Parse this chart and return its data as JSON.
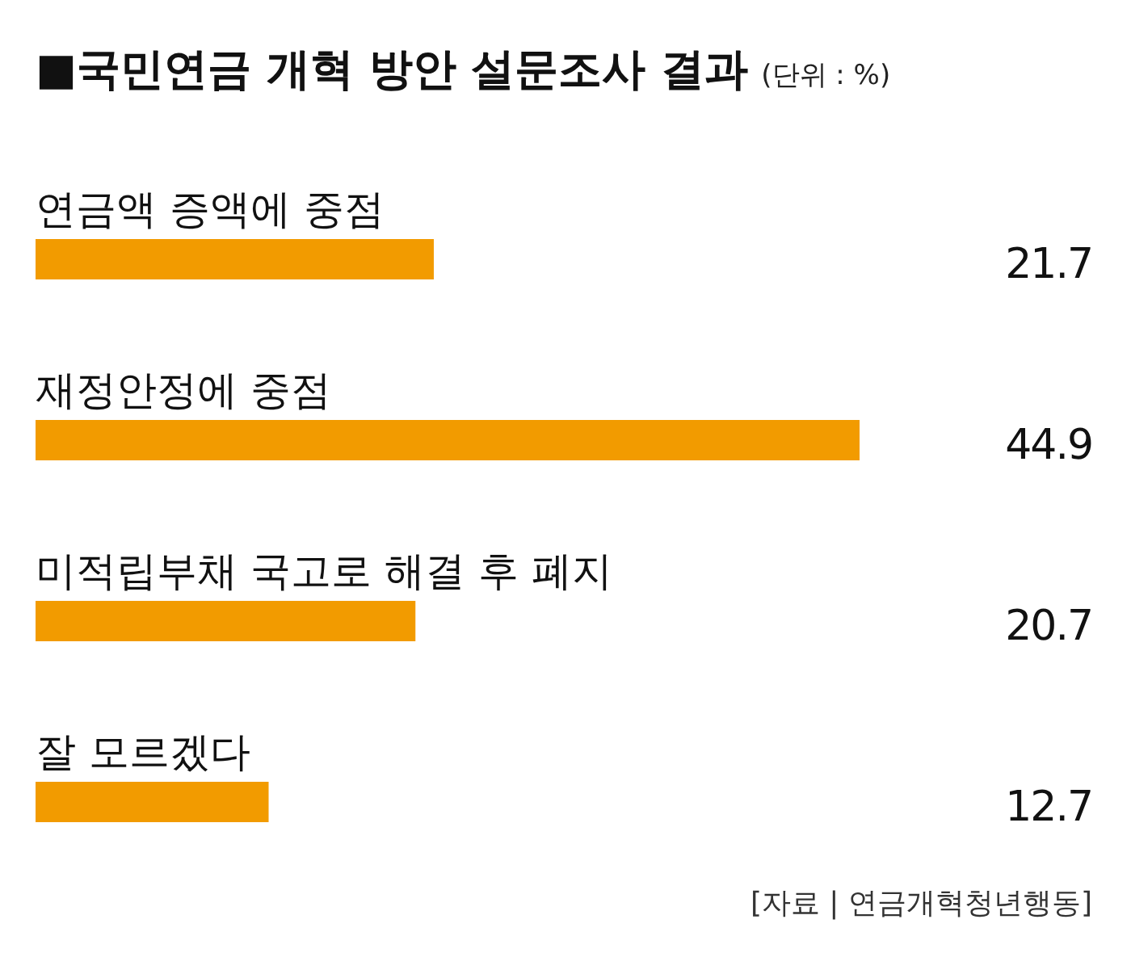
{
  "chart_data": {
    "type": "bar",
    "orientation": "horizontal",
    "title": "■국민연금 개혁 방안 설문조사 결과",
    "subtitle": "(단위 : %)",
    "categories": [
      "연금액 증액에 중점",
      "재정안정에 중점",
      "미적립부채 국고로 해결 후 폐지",
      "잘 모르겠다"
    ],
    "values": [
      21.7,
      44.9,
      20.7,
      12.7
    ],
    "color": "#f29b00",
    "data_labels": true,
    "annotations": [
      "[자료 | 연금개혁청년행동]"
    ]
  }
}
